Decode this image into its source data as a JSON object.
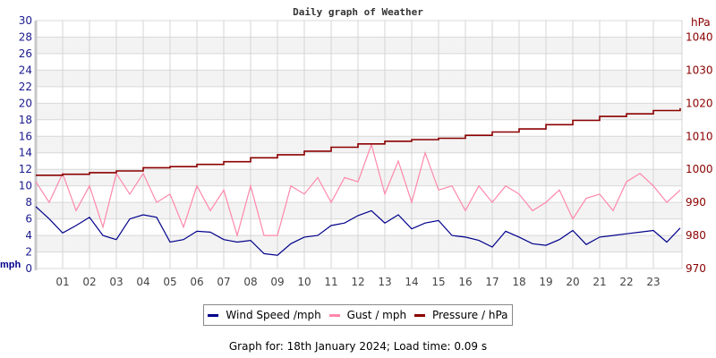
{
  "chart_data": {
    "type": "line",
    "title": "Daily graph of Weather",
    "x_tick_labels": [
      "01",
      "02",
      "03",
      "04",
      "05",
      "06",
      "07",
      "08",
      "09",
      "10",
      "11",
      "12",
      "13",
      "14",
      "15",
      "16",
      "17",
      "18",
      "19",
      "20",
      "21",
      "22",
      "23"
    ],
    "x_range_hours": [
      0,
      24
    ],
    "left_axis": {
      "label": "mph",
      "ylim": [
        0,
        30
      ],
      "ticks": [
        "0",
        "2",
        "4",
        "6",
        "8",
        "10",
        "12",
        "14",
        "16",
        "18",
        "20",
        "22",
        "24",
        "26",
        "28",
        "30"
      ]
    },
    "right_axis": {
      "label": "hPa",
      "ylim": [
        970,
        1045
      ],
      "ticks": [
        "970",
        "980",
        "990",
        "1000",
        "1010",
        "1020",
        "1030",
        "1040"
      ]
    },
    "grid": true,
    "legend_position": "bottom",
    "series": [
      {
        "name": "Wind Speed /mph",
        "axis": "left",
        "color": "#00008b",
        "x_step_hours": 0.5,
        "values": [
          7.5,
          6.0,
          4.3,
          5.2,
          6.2,
          4.0,
          3.5,
          6.0,
          6.5,
          6.2,
          3.2,
          3.5,
          4.5,
          4.4,
          3.5,
          3.2,
          3.4,
          1.8,
          1.6,
          3.0,
          3.8,
          4.0,
          5.2,
          5.5,
          6.4,
          7.0,
          5.5,
          6.5,
          4.8,
          5.5,
          5.8,
          4.0,
          3.8,
          3.4,
          2.6,
          4.5,
          3.8,
          3.0,
          2.8,
          3.5,
          4.6,
          2.9,
          3.8,
          4.0,
          4.2,
          4.4,
          4.6,
          3.2,
          4.9
        ]
      },
      {
        "name": "Gust / mph",
        "axis": "left",
        "color": "#ff88aa",
        "x_step_hours": 0.5,
        "values": [
          10.5,
          8,
          11.5,
          7,
          10,
          5,
          11.5,
          9,
          11.5,
          8,
          9,
          5,
          10,
          7,
          9.5,
          4,
          10,
          4,
          4,
          10,
          9,
          11,
          8,
          11,
          10.5,
          15,
          9,
          13,
          8,
          14,
          9.5,
          10,
          7,
          10,
          8,
          10,
          9,
          7,
          8,
          9.5,
          6,
          8.5,
          9,
          7,
          10.5,
          11.5,
          10,
          8,
          9.5
        ]
      },
      {
        "name": "Pressure / hPa",
        "axis": "right",
        "color": "#8b0000",
        "x_step_hours": 1,
        "values": [
          998.2,
          998.5,
          999,
          999.5,
          1000.5,
          1000.8,
          1001.5,
          1002.3,
          1003.5,
          1004.4,
          1005.5,
          1006.7,
          1007.7,
          1008.5,
          1009.0,
          1009.4,
          1010.3,
          1011.3,
          1012.2,
          1013.5,
          1014.8,
          1016.0,
          1016.8,
          1017.8,
          1018.5
        ]
      }
    ]
  },
  "footer": "Graph for: 18th January 2024; Load time: 0.09 s"
}
